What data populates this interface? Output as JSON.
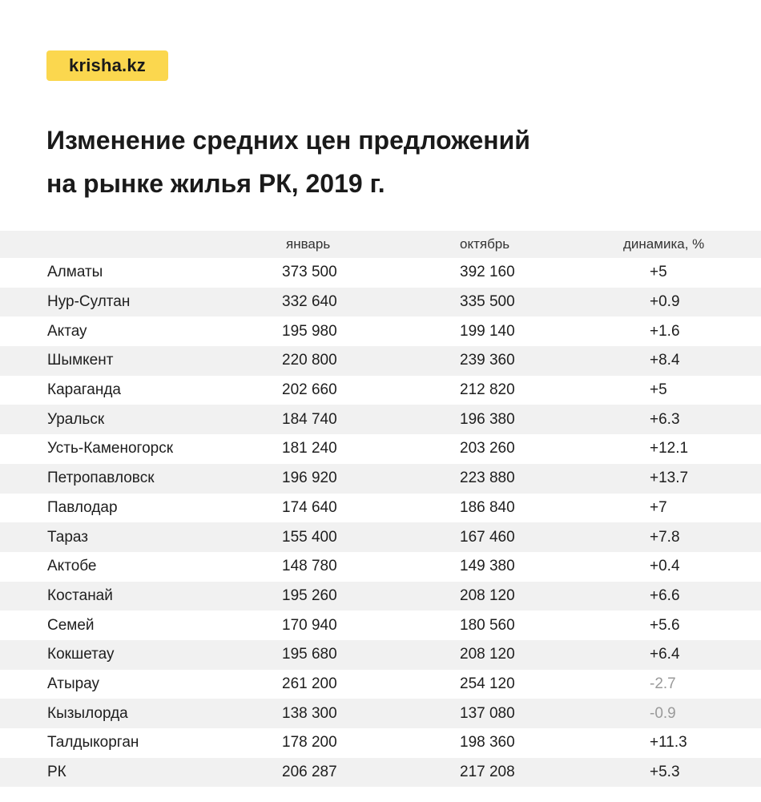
{
  "brand": {
    "logo_text": "krisha.kz",
    "accent_color": "#fbd74e"
  },
  "title": {
    "line1": "Изменение средних цен предложений",
    "line2": "на рынке жилья РК, 2019 г."
  },
  "table": {
    "columns": [
      "",
      "январь",
      "октябрь",
      "динамика, %"
    ],
    "rows": [
      [
        "Алматы",
        "373 500",
        "392 160",
        "+5"
      ],
      [
        "Нур-Султан",
        "332 640",
        "335 500",
        "+0.9"
      ],
      [
        "Актау",
        "195 980",
        "199 140",
        "+1.6"
      ],
      [
        "Шымкент",
        "220 800",
        "239 360",
        "+8.4"
      ],
      [
        "Караганда",
        "202 660",
        "212 820",
        "+5"
      ],
      [
        "Уральск",
        "184 740",
        "196 380",
        "+6.3"
      ],
      [
        "Усть-Каменогорск",
        "181 240",
        "203 260",
        "+12.1"
      ],
      [
        "Петропавловск",
        "196 920",
        "223 880",
        "+13.7"
      ],
      [
        "Павлодар",
        "174 640",
        "186 840",
        "+7"
      ],
      [
        "Тараз",
        "155 400",
        "167 460",
        "+7.8"
      ],
      [
        "Актобе",
        "148 780",
        "149 380",
        "+0.4"
      ],
      [
        "Костанай",
        "195 260",
        "208 120",
        "+6.6"
      ],
      [
        "Семей",
        "170 940",
        "180 560",
        "+5.6"
      ],
      [
        "Кокшетау",
        "195 680",
        "208 120",
        "+6.4"
      ],
      [
        "Атырау",
        "261 200",
        "254 120",
        "-2.7"
      ],
      [
        "Кызылорда",
        "138 300",
        "137 080",
        "-0.9"
      ],
      [
        "Талдыкорган",
        "178 200",
        "198 360",
        "+11.3"
      ],
      [
        "РК",
        "206 287",
        "217 208",
        "+5.3"
      ]
    ]
  }
}
